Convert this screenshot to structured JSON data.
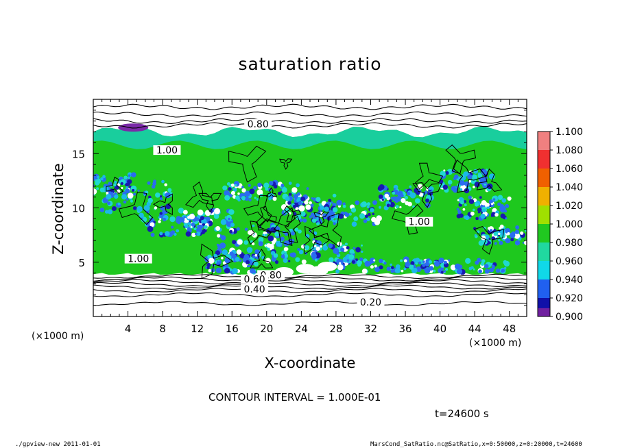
{
  "chart_data": {
    "type": "heatmap",
    "title": "saturation ratio",
    "xlabel": "X-coordinate",
    "ylabel": "Z-coordinate",
    "x_unit": "(×1000 m)",
    "z_unit": "(×1000 m)",
    "xlim": [
      0,
      50
    ],
    "ylim": [
      0,
      20
    ],
    "x_ticks": [
      "4",
      "8",
      "12",
      "16",
      "20",
      "24",
      "28",
      "32",
      "36",
      "40",
      "44",
      "48"
    ],
    "x_tick_values": [
      4,
      8,
      12,
      16,
      20,
      24,
      28,
      32,
      36,
      40,
      44,
      48
    ],
    "y_ticks": [
      "5",
      "10",
      "15"
    ],
    "y_tick_values": [
      5,
      10,
      15
    ],
    "colorbar": {
      "labels": [
        "1.100",
        "1.080",
        "1.060",
        "1.040",
        "1.020",
        "1.000",
        "0.980",
        "0.960",
        "0.940",
        "0.920",
        "0.900"
      ],
      "values": [
        1.1,
        1.08,
        1.06,
        1.04,
        1.02,
        1.0,
        0.98,
        0.96,
        0.94,
        0.92,
        0.9
      ],
      "colors": [
        "#f08080",
        "#f03030",
        "#f06000",
        "#f0b000",
        "#a0e000",
        "#20c820",
        "#20d8a0",
        "#10d8e8",
        "#2060f0",
        "#1010a8",
        "#7020a0"
      ]
    },
    "contour_labels": [
      {
        "text": "0.80",
        "x": 19,
        "z": 17.6
      },
      {
        "text": "1.00",
        "x": 8.5,
        "z": 15.2
      },
      {
        "text": "1.00",
        "x": 5.2,
        "z": 5.2
      },
      {
        "text": "1.00",
        "x": 37.6,
        "z": 8.6
      },
      {
        "text": "0.80",
        "x": 20.5,
        "z": 3.7
      },
      {
        "text": "0.60",
        "x": 18.6,
        "z": 3.3
      },
      {
        "text": "0.40",
        "x": 18.6,
        "z": 2.4
      },
      {
        "text": "0.20",
        "x": 32,
        "z": 1.2
      }
    ],
    "contour_interval": "CONTOUR INTERVAL = 1.000E-01",
    "time": "t=24600 s"
  },
  "footer": {
    "left": "./gpview-new 2011-01-01",
    "right": "MarsCond_SatRatio.nc@SatRatio,x=0:50000,z=0:20000,t=24600"
  }
}
